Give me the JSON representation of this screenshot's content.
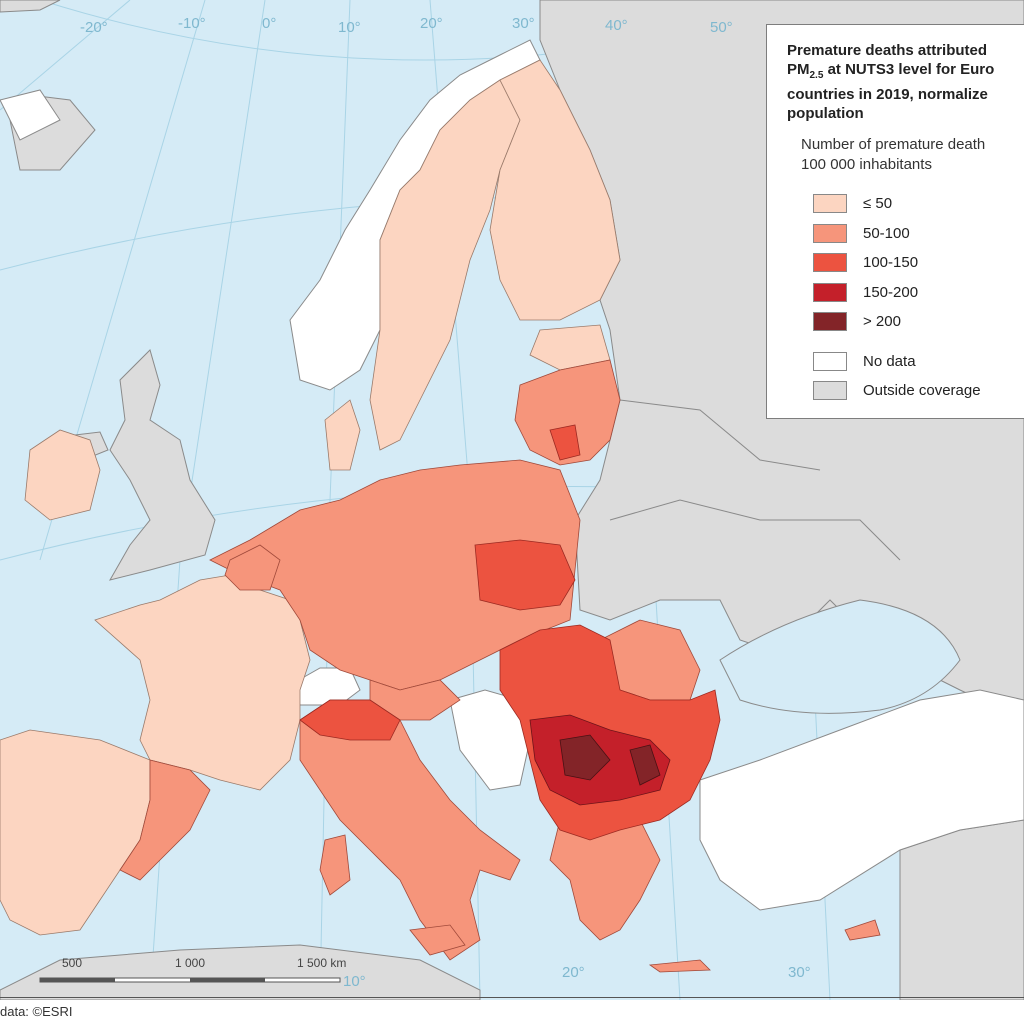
{
  "legend": {
    "title_line1": "Premature deaths attributed",
    "title_line2_prefix": "PM",
    "title_line2_sub": "2.5",
    "title_line2_rest": " at NUTS3 level for Euro",
    "title_line3": "countries in 2019, normalize",
    "title_line4": "population",
    "subtitle_line1": "Number of premature death",
    "subtitle_line2": "100 000 inhabitants",
    "classes": [
      {
        "label": "≤ 50",
        "color": "#fcd5c1"
      },
      {
        "label": "50-100",
        "color": "#f6957b"
      },
      {
        "label": "100-150",
        "color": "#ec5340"
      },
      {
        "label": "150-200",
        "color": "#c4202a"
      },
      {
        "label": "> 200",
        "color": "#832428"
      }
    ],
    "no_data": {
      "label": "No data",
      "color": "#ffffff"
    },
    "outside": {
      "label": "Outside coverage",
      "color": "#dcdcdc"
    }
  },
  "graticule": {
    "top_labels": [
      "-20°",
      "-10°",
      "0°",
      "10°",
      "20°",
      "30°",
      "40°",
      "50°"
    ],
    "bottom_labels": [
      "10°",
      "20°",
      "30°"
    ]
  },
  "scale_bar": {
    "labels": [
      "500",
      "1 000",
      "1 500 km"
    ]
  },
  "source": "data: ©ESRI",
  "colors": {
    "sea": "#d5ebf6",
    "outside": "#dcdcdc",
    "border": "#8a8a8a",
    "graticule": "#a9d4e6"
  }
}
